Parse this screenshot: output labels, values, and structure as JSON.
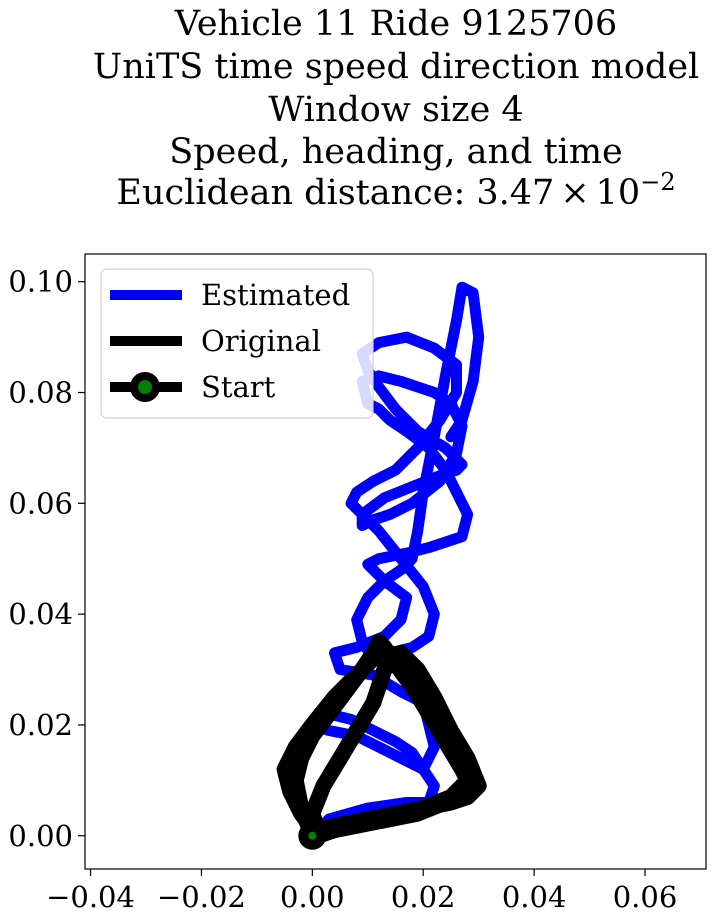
{
  "chart_data": {
    "type": "line",
    "title_lines": [
      "Vehicle 11 Ride 9125706",
      "UniTS time speed direction model",
      "Window size 4",
      "Speed, heading, and time",
      "Euclidean distance: 3.47×10⁻²"
    ],
    "title_parts": {
      "prefix": "Euclidean distance: 3.47",
      "times": "×",
      "base": "10",
      "exponent": "−2"
    },
    "xlim": [
      -0.041,
      0.071
    ],
    "ylim": [
      -0.006,
      0.105
    ],
    "x_ticks": [
      -0.04,
      -0.02,
      0.0,
      0.02,
      0.04,
      0.06
    ],
    "x_tick_labels": [
      "−0.04",
      "−0.02",
      "0.00",
      "0.02",
      "0.04",
      "0.06"
    ],
    "y_ticks": [
      0.0,
      0.02,
      0.04,
      0.06,
      0.08,
      0.1
    ],
    "y_tick_labels": [
      "0.00",
      "0.02",
      "0.04",
      "0.06",
      "0.08",
      "0.10"
    ],
    "grid": false,
    "legend_placement": "top-left",
    "legend": [
      {
        "label": "Estimated",
        "color": "#0000ff",
        "marker": false
      },
      {
        "label": "Original",
        "color": "#000000",
        "marker": false
      },
      {
        "label": "Start",
        "color": "#000000",
        "marker": true,
        "marker_face": "#008000"
      }
    ],
    "series": [
      {
        "name": "Estimated",
        "color": "#0000ff",
        "x": [
          0.0,
          0.003,
          0.01,
          0.017,
          0.021,
          0.022,
          0.02,
          0.018,
          0.015,
          0.011,
          0.007,
          0.003,
          0.0,
          0.003,
          0.008,
          0.012,
          0.016,
          0.02,
          0.022,
          0.021,
          0.02,
          0.016,
          0.011,
          0.005,
          0.004,
          0.008,
          0.013,
          0.016,
          0.017,
          0.013,
          0.01,
          0.012,
          0.017,
          0.021,
          0.024,
          0.027,
          0.028,
          0.026,
          0.024,
          0.021,
          0.017,
          0.014,
          0.012,
          0.01,
          0.009,
          0.012,
          0.016,
          0.022,
          0.025,
          0.027,
          0.026,
          0.023,
          0.018,
          0.014,
          0.011,
          0.009,
          0.009,
          0.013,
          0.018,
          0.023,
          0.026,
          0.027,
          0.024,
          0.019,
          0.015,
          0.012,
          0.01,
          0.009,
          0.012,
          0.017,
          0.022,
          0.026,
          0.026,
          0.023,
          0.019,
          0.015,
          0.011,
          0.008,
          0.007,
          0.009,
          0.012,
          0.016,
          0.02,
          0.022,
          0.021,
          0.018,
          0.014,
          0.011,
          0.009,
          0.008,
          0.01,
          0.013,
          0.016,
          0.018,
          0.019,
          0.02,
          0.022,
          0.024,
          0.026,
          0.027,
          0.029,
          0.03,
          0.029,
          0.027,
          0.025
        ],
        "y": [
          0.0,
          0.003,
          0.005,
          0.006,
          0.006,
          0.009,
          0.012,
          0.015,
          0.017,
          0.019,
          0.021,
          0.022,
          0.02,
          0.019,
          0.018,
          0.016,
          0.014,
          0.012,
          0.016,
          0.02,
          0.024,
          0.026,
          0.029,
          0.03,
          0.033,
          0.034,
          0.036,
          0.039,
          0.043,
          0.046,
          0.049,
          0.05,
          0.051,
          0.052,
          0.053,
          0.054,
          0.058,
          0.062,
          0.066,
          0.07,
          0.073,
          0.075,
          0.077,
          0.078,
          0.082,
          0.083,
          0.082,
          0.08,
          0.078,
          0.074,
          0.069,
          0.064,
          0.06,
          0.058,
          0.057,
          0.056,
          0.058,
          0.061,
          0.063,
          0.065,
          0.066,
          0.067,
          0.07,
          0.073,
          0.077,
          0.081,
          0.084,
          0.087,
          0.089,
          0.09,
          0.088,
          0.085,
          0.08,
          0.075,
          0.07,
          0.066,
          0.064,
          0.062,
          0.06,
          0.058,
          0.055,
          0.05,
          0.045,
          0.04,
          0.036,
          0.034,
          0.033,
          0.032,
          0.035,
          0.039,
          0.043,
          0.046,
          0.048,
          0.05,
          0.055,
          0.062,
          0.072,
          0.083,
          0.093,
          0.099,
          0.098,
          0.09,
          0.082,
          0.075,
          0.072
        ]
      },
      {
        "name": "Original",
        "color": "#000000",
        "x": [
          0.0,
          -0.002,
          -0.003,
          -0.002,
          0.0,
          0.003,
          0.006,
          0.009,
          0.011,
          0.012,
          0.013,
          0.015,
          0.018,
          0.021,
          0.024,
          0.027,
          0.029,
          0.028,
          0.025,
          0.02,
          0.015,
          0.01,
          0.005,
          0.001,
          0.0,
          0.002,
          0.005,
          0.008,
          0.011,
          0.013,
          0.016,
          0.019,
          0.022,
          0.025,
          0.028,
          0.03,
          0.028,
          0.024,
          0.019,
          0.014,
          0.009,
          0.004,
          0.001,
          -0.002,
          -0.004,
          -0.005,
          -0.003,
          0.0,
          0.004,
          0.008,
          0.011,
          0.012,
          0.014,
          0.017,
          0.02,
          0.023,
          0.026,
          0.028,
          0.025,
          0.02,
          0.014,
          0.008,
          0.003,
          0.0
        ],
        "y": [
          0.0,
          0.005,
          0.01,
          0.014,
          0.018,
          0.022,
          0.026,
          0.03,
          0.033,
          0.035,
          0.034,
          0.031,
          0.027,
          0.022,
          0.017,
          0.012,
          0.009,
          0.007,
          0.006,
          0.005,
          0.004,
          0.003,
          0.002,
          0.001,
          0.004,
          0.009,
          0.014,
          0.019,
          0.024,
          0.03,
          0.033,
          0.03,
          0.025,
          0.019,
          0.014,
          0.009,
          0.007,
          0.006,
          0.004,
          0.003,
          0.002,
          0.001,
          0.0,
          0.004,
          0.008,
          0.012,
          0.016,
          0.02,
          0.025,
          0.029,
          0.032,
          0.034,
          0.033,
          0.029,
          0.024,
          0.019,
          0.014,
          0.01,
          0.007,
          0.005,
          0.003,
          0.002,
          0.001,
          0.0
        ]
      }
    ],
    "start_point": {
      "x": 0.0,
      "y": 0.0
    }
  }
}
